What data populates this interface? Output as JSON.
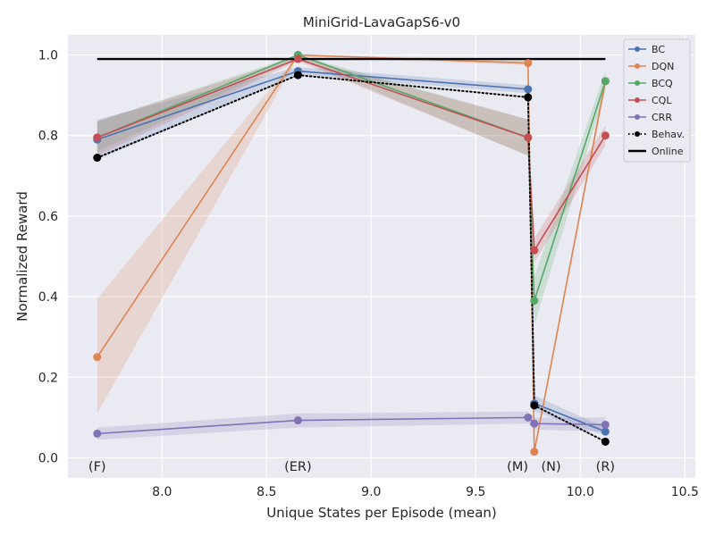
{
  "chart_data": {
    "type": "line",
    "title": "MiniGrid-LavaGapS6-v0",
    "xlabel": "Unique States per Episode (mean)",
    "ylabel": "Normalized Reward",
    "xlim": [
      7.55,
      10.55
    ],
    "ylim": [
      -0.05,
      1.05
    ],
    "xticks": [
      "8.0",
      "8.5",
      "9.0",
      "9.5",
      "10.0",
      "10.5"
    ],
    "yticks": [
      "0.0",
      "0.2",
      "0.4",
      "0.6",
      "0.8",
      "1.0"
    ],
    "grid": true,
    "legend_position": "top-right",
    "dataset_labels": [
      {
        "label": "(F)",
        "x": 7.69
      },
      {
        "label": "(ER)",
        "x": 8.65
      },
      {
        "label": "(M)",
        "x": 9.7
      },
      {
        "label": "(N)",
        "x": 9.86
      },
      {
        "label": "(R)",
        "x": 10.12
      }
    ],
    "series": [
      {
        "name": "BC",
        "color": "#4c72b0",
        "style": "solid",
        "points": [
          {
            "x": 7.69,
            "y": 0.79,
            "lo": 0.74,
            "hi": 0.84
          },
          {
            "x": 8.65,
            "y": 0.96,
            "lo": 0.95,
            "hi": 0.97
          },
          {
            "x": 9.75,
            "y": 0.915,
            "lo": 0.905,
            "hi": 0.925
          },
          {
            "x": 9.78,
            "y": 0.135,
            "lo": 0.115,
            "hi": 0.155
          },
          {
            "x": 10.12,
            "y": 0.065,
            "lo": 0.055,
            "hi": 0.075
          }
        ]
      },
      {
        "name": "DQN",
        "color": "#dd8452",
        "style": "solid",
        "points": [
          {
            "x": 7.69,
            "y": 0.25,
            "lo": 0.11,
            "hi": 0.395
          },
          {
            "x": 8.65,
            "y": 1.0,
            "lo": 0.995,
            "hi": 1.0
          },
          {
            "x": 9.75,
            "y": 0.98,
            "lo": 0.975,
            "hi": 0.99
          },
          {
            "x": 9.78,
            "y": 0.015,
            "lo": 0.01,
            "hi": 0.02
          },
          {
            "x": 10.12,
            "y": 0.935,
            "lo": 0.92,
            "hi": 0.95
          }
        ]
      },
      {
        "name": "BCQ",
        "color": "#55a868",
        "style": "solid",
        "points": [
          {
            "x": 7.69,
            "y": 0.795,
            "lo": 0.76,
            "hi": 0.835
          },
          {
            "x": 8.65,
            "y": 1.0,
            "lo": 0.99,
            "hi": 1.0
          },
          {
            "x": 9.75,
            "y": 0.795,
            "lo": 0.75,
            "hi": 0.84
          },
          {
            "x": 9.78,
            "y": 0.39,
            "lo": 0.33,
            "hi": 0.45
          },
          {
            "x": 10.12,
            "y": 0.935,
            "lo": 0.91,
            "hi": 0.96
          }
        ]
      },
      {
        "name": "CQL",
        "color": "#c44e52",
        "style": "solid",
        "points": [
          {
            "x": 7.69,
            "y": 0.795,
            "lo": 0.75,
            "hi": 0.835
          },
          {
            "x": 8.65,
            "y": 0.99,
            "lo": 0.985,
            "hi": 0.995
          },
          {
            "x": 9.75,
            "y": 0.795,
            "lo": 0.75,
            "hi": 0.84
          },
          {
            "x": 9.78,
            "y": 0.515,
            "lo": 0.485,
            "hi": 0.545
          },
          {
            "x": 10.12,
            "y": 0.8,
            "lo": 0.775,
            "hi": 0.825
          }
        ]
      },
      {
        "name": "CRR",
        "color": "#8172b3",
        "style": "solid",
        "points": [
          {
            "x": 7.69,
            "y": 0.06,
            "lo": 0.045,
            "hi": 0.075
          },
          {
            "x": 8.65,
            "y": 0.093,
            "lo": 0.075,
            "hi": 0.11
          },
          {
            "x": 9.75,
            "y": 0.1,
            "lo": 0.085,
            "hi": 0.115
          },
          {
            "x": 9.78,
            "y": 0.085,
            "lo": 0.07,
            "hi": 0.1
          },
          {
            "x": 10.12,
            "y": 0.082,
            "lo": 0.065,
            "hi": 0.1
          }
        ]
      },
      {
        "name": "Behav.",
        "color": "#000000",
        "style": "dotted",
        "points": [
          {
            "x": 7.69,
            "y": 0.745
          },
          {
            "x": 8.65,
            "y": 0.95
          },
          {
            "x": 9.75,
            "y": 0.895
          },
          {
            "x": 9.78,
            "y": 0.13
          },
          {
            "x": 10.12,
            "y": 0.04
          }
        ]
      },
      {
        "name": "Online",
        "color": "#000000",
        "style": "solid-thick",
        "points": [
          {
            "x": 7.69,
            "y": 0.99
          },
          {
            "x": 10.12,
            "y": 0.99
          }
        ]
      }
    ]
  }
}
